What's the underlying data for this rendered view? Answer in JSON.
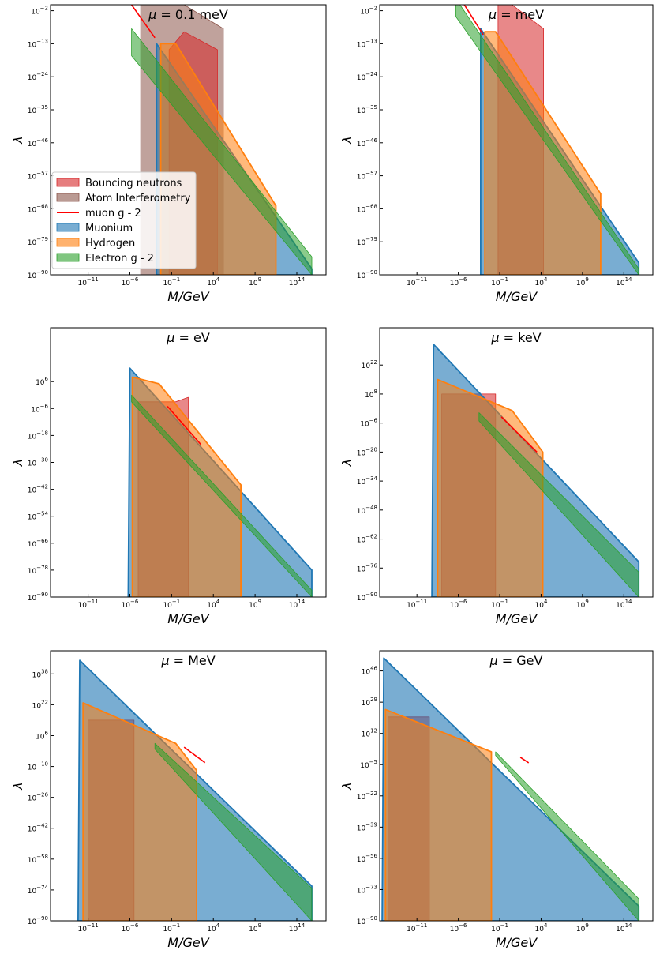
{
  "figure": {
    "colors": {
      "bouncing": "#d62728",
      "atom": "#8c564b",
      "muon_g2": "#ff0000",
      "muonium": "#1f77b4",
      "hydrogen": "#ff7f0e",
      "electron_g2": "#2ca02c"
    }
  },
  "chart_data": [
    {
      "type": "area",
      "title_prefix": "μ = ",
      "title": "0.1 meV",
      "xlabel": "M/GeV",
      "ylabel": "λ",
      "xscale": "log",
      "yscale": "log",
      "xlim_exp": [
        -15.5,
        17.5
      ],
      "ylim_exp": [
        -90,
        0
      ],
      "xticks": [
        -11,
        -6,
        -1,
        4,
        9,
        14
      ],
      "yticks": [
        -90,
        -79,
        -68,
        -57,
        -46,
        -35,
        -24,
        -13,
        -2
      ],
      "legend": {
        "position": "center-left",
        "entries": [
          {
            "key": "bouncing",
            "label": "Bouncing neutrons",
            "kind": "patch"
          },
          {
            "key": "atom",
            "label": "Atom Interferometry",
            "kind": "patch"
          },
          {
            "key": "muon_g2",
            "label": "muon g - 2",
            "kind": "line"
          },
          {
            "key": "muonium",
            "label": "Muonium",
            "kind": "patch"
          },
          {
            "key": "hydrogen",
            "label": "Hydrogen",
            "kind": "patch"
          },
          {
            "key": "electron_g2",
            "label": "Electron g - 2",
            "kind": "patch"
          }
        ]
      },
      "series": [
        {
          "key": "atom",
          "points": [
            [
              -4.7,
              -90
            ],
            [
              -4.7,
              0
            ],
            [
              0.5,
              0
            ],
            [
              5.2,
              -8
            ],
            [
              5.2,
              -90
            ]
          ]
        },
        {
          "key": "bouncing",
          "points": [
            [
              -1.3,
              -90
            ],
            [
              -1.3,
              -15
            ],
            [
              0.5,
              -9
            ],
            [
              4.5,
              -15
            ],
            [
              4.5,
              -90
            ]
          ]
        },
        {
          "key": "muonium",
          "points": [
            [
              -2.8,
              -90
            ],
            [
              -2.8,
              -13
            ],
            [
              15.8,
              -88
            ],
            [
              15.8,
              -90
            ]
          ]
        },
        {
          "key": "hydrogen",
          "points": [
            [
              -2.3,
              -90
            ],
            [
              -2.3,
              -13
            ],
            [
              -0.5,
              -13
            ],
            [
              11.5,
              -67
            ],
            [
              11.5,
              -90
            ]
          ]
        },
        {
          "key": "electron_g2",
          "points": [
            [
              -5.8,
              -17
            ],
            [
              -5.8,
              -8
            ],
            [
              15.8,
              -84
            ],
            [
              15.8,
              -90
            ]
          ]
        },
        {
          "key": "muon_g2",
          "kind": "line",
          "points": [
            [
              -5.8,
              0
            ],
            [
              -3.0,
              -11
            ]
          ]
        }
      ]
    },
    {
      "type": "area",
      "title_prefix": "μ = ",
      "title": "meV",
      "xlabel": "M/GeV",
      "ylabel": "λ",
      "xscale": "log",
      "yscale": "log",
      "xlim_exp": [
        -15.5,
        17.5
      ],
      "ylim_exp": [
        -90,
        0
      ],
      "xticks": [
        -11,
        -6,
        -1,
        4,
        9,
        14
      ],
      "yticks": [
        -90,
        -79,
        -68,
        -57,
        -46,
        -35,
        -24,
        -13,
        -2
      ],
      "series": [
        {
          "key": "bouncing",
          "points": [
            [
              -1.2,
              -90
            ],
            [
              -1.2,
              1
            ],
            [
              0,
              1
            ],
            [
              4.3,
              -8
            ],
            [
              4.3,
              -90
            ]
          ]
        },
        {
          "key": "muonium",
          "points": [
            [
              -3.3,
              -90
            ],
            [
              -3.3,
              -8
            ],
            [
              15.8,
              -86
            ],
            [
              15.8,
              -90
            ]
          ]
        },
        {
          "key": "hydrogen",
          "points": [
            [
              -2.8,
              -90
            ],
            [
              -2.8,
              -9
            ],
            [
              -1.5,
              -9
            ],
            [
              11.2,
              -63
            ],
            [
              11.2,
              -90
            ]
          ]
        },
        {
          "key": "electron_g2",
          "points": [
            [
              -6.3,
              -4
            ],
            [
              -6.3,
              2
            ],
            [
              15.8,
              -88
            ],
            [
              15.8,
              -90
            ]
          ]
        },
        {
          "key": "muon_g2",
          "kind": "line",
          "points": [
            [
              -5.5,
              1
            ],
            [
              -3.0,
              -10
            ]
          ]
        }
      ]
    },
    {
      "type": "area",
      "title_prefix": "μ = ",
      "title": "eV",
      "xlabel": "M/GeV",
      "ylabel": "λ",
      "xscale": "log",
      "yscale": "log",
      "xlim_exp": [
        -15.5,
        17.5
      ],
      "ylim_exp": [
        -90,
        30
      ],
      "xticks": [
        -11,
        -6,
        -1,
        4,
        9,
        14
      ],
      "yticks": [
        -90,
        -78,
        -66,
        -54,
        -42,
        -30,
        -18,
        -6,
        6
      ],
      "series": [
        {
          "key": "muonium",
          "points": [
            [
              -6.2,
              -90
            ],
            [
              -6.0,
              12
            ],
            [
              15.8,
              -78
            ],
            [
              15.8,
              -90
            ]
          ]
        },
        {
          "key": "bouncing",
          "points": [
            [
              -5.0,
              -90
            ],
            [
              -5.0,
              -3
            ],
            [
              -0.5,
              -3
            ],
            [
              1,
              -1
            ],
            [
              1,
              -90
            ]
          ]
        },
        {
          "key": "hydrogen",
          "points": [
            [
              -5.7,
              -90
            ],
            [
              -5.7,
              8
            ],
            [
              -2.5,
              5
            ],
            [
              7.3,
              -40
            ],
            [
              7.3,
              -90
            ]
          ]
        },
        {
          "key": "electron_g2",
          "points": [
            [
              -5.8,
              -3
            ],
            [
              -5.8,
              0
            ],
            [
              15.8,
              -87
            ],
            [
              15.8,
              -90
            ]
          ]
        },
        {
          "key": "muon_g2",
          "kind": "line",
          "points": [
            [
              -1.5,
              -5
            ],
            [
              2.5,
              -22
            ]
          ]
        }
      ]
    },
    {
      "type": "area",
      "title_prefix": "μ = ",
      "title": "keV",
      "xlabel": "M/GeV",
      "ylabel": "λ",
      "xscale": "log",
      "yscale": "log",
      "xlim_exp": [
        -15.5,
        17.5
      ],
      "ylim_exp": [
        -90,
        40
      ],
      "xticks": [
        -11,
        -6,
        -1,
        4,
        9,
        14
      ],
      "yticks": [
        -90,
        -76,
        -62,
        -48,
        -34,
        -20,
        -6,
        8,
        22
      ],
      "series": [
        {
          "key": "muonium",
          "points": [
            [
              -9.2,
              -90
            ],
            [
              -9.0,
              32
            ],
            [
              15.8,
              -73
            ],
            [
              15.8,
              -90
            ]
          ]
        },
        {
          "key": "bouncing",
          "points": [
            [
              -8.0,
              -90
            ],
            [
              -8.0,
              8
            ],
            [
              -1.5,
              8
            ],
            [
              -1.5,
              -90
            ]
          ]
        },
        {
          "key": "hydrogen",
          "points": [
            [
              -8.5,
              -90
            ],
            [
              -8.5,
              15
            ],
            [
              0.5,
              0
            ],
            [
              4.2,
              -20
            ],
            [
              4.2,
              -90
            ]
          ]
        },
        {
          "key": "electron_g2",
          "points": [
            [
              -3.5,
              -5
            ],
            [
              -3.5,
              -1
            ],
            [
              15.8,
              -78
            ],
            [
              15.8,
              -90
            ]
          ]
        },
        {
          "key": "muon_g2",
          "kind": "line",
          "points": [
            [
              -0.8,
              -3
            ],
            [
              3.5,
              -20
            ]
          ]
        }
      ]
    },
    {
      "type": "area",
      "title_prefix": "μ = ",
      "title": "MeV",
      "xlabel": "M/GeV",
      "ylabel": "λ",
      "xscale": "log",
      "yscale": "log",
      "xlim_exp": [
        -15.5,
        17.5
      ],
      "ylim_exp": [
        -90,
        50
      ],
      "xticks": [
        -11,
        -6,
        -1,
        4,
        9,
        14
      ],
      "yticks": [
        -90,
        -74,
        -58,
        -42,
        -26,
        -10,
        6,
        22,
        38
      ],
      "series": [
        {
          "key": "muonium",
          "points": [
            [
              -12.2,
              -90
            ],
            [
              -12.0,
              45
            ],
            [
              15.8,
              -72
            ],
            [
              15.8,
              -90
            ]
          ]
        },
        {
          "key": "bouncing",
          "points": [
            [
              -11,
              -90
            ],
            [
              -11,
              14
            ],
            [
              -5.5,
              14
            ],
            [
              -5.5,
              -90
            ]
          ]
        },
        {
          "key": "hydrogen",
          "points": [
            [
              -11.6,
              -90
            ],
            [
              -11.6,
              23
            ],
            [
              -0.5,
              2
            ],
            [
              2,
              -12
            ],
            [
              2,
              -90
            ]
          ]
        },
        {
          "key": "electron_g2",
          "points": [
            [
              -3.0,
              -1
            ],
            [
              -3.0,
              2
            ],
            [
              15.8,
              -73
            ],
            [
              15.8,
              -90
            ]
          ]
        },
        {
          "key": "muon_g2",
          "kind": "line",
          "points": [
            [
              0.5,
              0
            ],
            [
              3.0,
              -8
            ]
          ]
        }
      ]
    },
    {
      "type": "area",
      "title_prefix": "μ = ",
      "title": "GeV",
      "xlabel": "M/GeV",
      "ylabel": "λ",
      "xscale": "log",
      "yscale": "log",
      "xlim_exp": [
        -15.5,
        17.5
      ],
      "ylim_exp": [
        -90,
        57
      ],
      "xticks": [
        -11,
        -6,
        -1,
        4,
        9,
        14
      ],
      "yticks": [
        -90,
        -73,
        -56,
        -39,
        -22,
        -5,
        12,
        29,
        46
      ],
      "series": [
        {
          "key": "muonium",
          "points": [
            [
              -15.2,
              -90
            ],
            [
              -15,
              53
            ],
            [
              15.8,
              -82
            ],
            [
              15.8,
              -90
            ]
          ]
        },
        {
          "key": "bouncing",
          "points": [
            [
              -14.5,
              -90
            ],
            [
              -14.5,
              21
            ],
            [
              -9.5,
              21
            ],
            [
              -9.5,
              -90
            ]
          ]
        },
        {
          "key": "hydrogen",
          "points": [
            [
              -14.8,
              -90
            ],
            [
              -14.8,
              25
            ],
            [
              -2,
              2
            ],
            [
              -2,
              -90
            ]
          ]
        },
        {
          "key": "electron_g2",
          "points": [
            [
              -1.5,
              0
            ],
            [
              -1.5,
              2
            ],
            [
              15.8,
              -78
            ],
            [
              15.8,
              -90
            ]
          ]
        },
        {
          "key": "muon_g2",
          "kind": "line",
          "points": [
            [
              1.5,
              -1
            ],
            [
              2.5,
              -4
            ]
          ]
        }
      ]
    }
  ]
}
